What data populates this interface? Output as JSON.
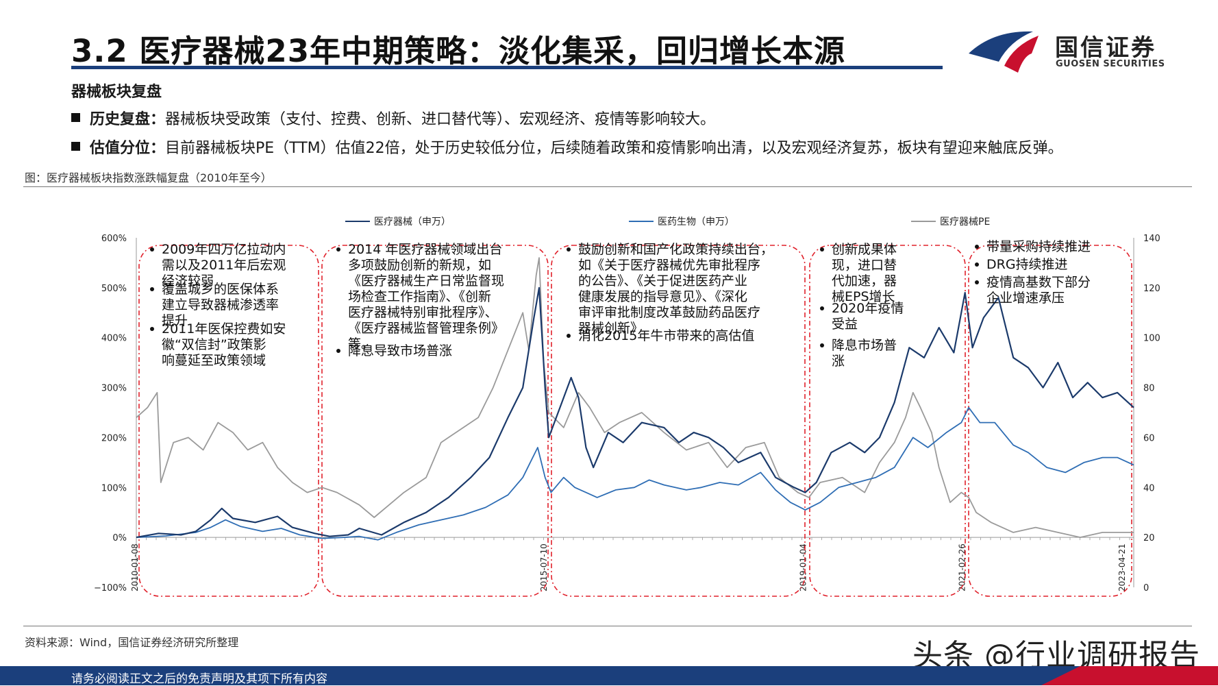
{
  "header": {
    "title": "3.2 医疗器械23年中期策略：淡化集采，回归增长本源",
    "brand_name": "国信证券",
    "brand_en": "GUOSEN SECURITIES",
    "brand_colors": {
      "navy": "#1b3f7c",
      "red": "#c8102e"
    }
  },
  "section_heading": "器械板块复盘",
  "bullets": [
    {
      "label": "历史复盘：",
      "text": "器械板块受政策（支付、控费、创新、进口替代等）、宏观经济、疫情等影响较大。"
    },
    {
      "label": "估值分位：",
      "text": "目前器械板块PE（TTM）估值22倍，处于历史较低分位，后续随着政策和疫情影响出清，以及宏观经济复苏，板块有望迎来触底反弹。"
    }
  ],
  "figure_caption": "图：医疗器械板块指数涨跌幅复盘（2010年至今）",
  "source": "资料来源：Wind，国信证券经济研究所整理",
  "watermark": "头条 @行业调研报告",
  "footer": "请务必阅读正文之后的免责声明及其项下所有内容",
  "chart_data": {
    "type": "line",
    "x_tick_labels": [
      "2010-01-08",
      "2015-07-10",
      "2019-01-04",
      "2021-02-26",
      "2023-04-21"
    ],
    "y_left": {
      "ylim": [
        -100,
        600
      ],
      "ticks": [
        "600%",
        "500%",
        "400%",
        "300%",
        "200%",
        "100%",
        "0%",
        "−100%"
      ]
    },
    "y_right": {
      "ylim": [
        0,
        140
      ],
      "ticks": [
        "140",
        "120",
        "100",
        "80",
        "60",
        "40",
        "20",
        "0"
      ]
    },
    "legend_position": "top",
    "series": [
      {
        "name": "医疗器械（申万）",
        "axis": "left",
        "color": "#1b3a6b",
        "points": [
          [
            2010.0,
            0
          ],
          [
            2010.3,
            8
          ],
          [
            2010.6,
            5
          ],
          [
            2010.8,
            12
          ],
          [
            2011.0,
            35
          ],
          [
            2011.15,
            58
          ],
          [
            2011.3,
            38
          ],
          [
            2011.6,
            30
          ],
          [
            2011.9,
            42
          ],
          [
            2012.1,
            20
          ],
          [
            2012.4,
            8
          ],
          [
            2012.6,
            2
          ],
          [
            2012.85,
            5
          ],
          [
            2013.0,
            18
          ],
          [
            2013.3,
            5
          ],
          [
            2013.6,
            30
          ],
          [
            2013.9,
            50
          ],
          [
            2014.2,
            80
          ],
          [
            2014.5,
            120
          ],
          [
            2014.75,
            160
          ],
          [
            2015.0,
            240
          ],
          [
            2015.2,
            300
          ],
          [
            2015.35,
            440
          ],
          [
            2015.42,
            500
          ],
          [
            2015.5,
            300
          ],
          [
            2015.55,
            200
          ],
          [
            2015.65,
            240
          ],
          [
            2015.85,
            320
          ],
          [
            2015.95,
            280
          ],
          [
            2016.05,
            180
          ],
          [
            2016.15,
            140
          ],
          [
            2016.35,
            210
          ],
          [
            2016.55,
            190
          ],
          [
            2016.8,
            230
          ],
          [
            2017.1,
            220
          ],
          [
            2017.3,
            190
          ],
          [
            2017.5,
            210
          ],
          [
            2017.7,
            200
          ],
          [
            2017.9,
            180
          ],
          [
            2018.1,
            150
          ],
          [
            2018.4,
            170
          ],
          [
            2018.6,
            120
          ],
          [
            2018.85,
            100
          ],
          [
            2019.0,
            90
          ],
          [
            2019.15,
            110
          ],
          [
            2019.35,
            170
          ],
          [
            2019.6,
            190
          ],
          [
            2019.8,
            170
          ],
          [
            2020.0,
            200
          ],
          [
            2020.2,
            270
          ],
          [
            2020.4,
            380
          ],
          [
            2020.6,
            360
          ],
          [
            2020.8,
            420
          ],
          [
            2021.0,
            370
          ],
          [
            2021.15,
            490
          ],
          [
            2021.25,
            380
          ],
          [
            2021.4,
            440
          ],
          [
            2021.6,
            480
          ],
          [
            2021.8,
            360
          ],
          [
            2022.0,
            340
          ],
          [
            2022.2,
            300
          ],
          [
            2022.4,
            350
          ],
          [
            2022.6,
            280
          ],
          [
            2022.8,
            310
          ],
          [
            2023.0,
            280
          ],
          [
            2023.2,
            290
          ],
          [
            2023.42,
            260
          ]
        ]
      },
      {
        "name": "医药生物（申万）",
        "axis": "left",
        "color": "#2e6db4",
        "points": [
          [
            2010.0,
            0
          ],
          [
            2010.4,
            3
          ],
          [
            2010.8,
            10
          ],
          [
            2011.0,
            20
          ],
          [
            2011.2,
            35
          ],
          [
            2011.4,
            22
          ],
          [
            2011.7,
            12
          ],
          [
            2011.95,
            18
          ],
          [
            2012.2,
            5
          ],
          [
            2012.5,
            -2
          ],
          [
            2012.8,
            0
          ],
          [
            2013.0,
            2
          ],
          [
            2013.25,
            -5
          ],
          [
            2013.5,
            10
          ],
          [
            2013.8,
            25
          ],
          [
            2014.1,
            35
          ],
          [
            2014.4,
            45
          ],
          [
            2014.7,
            60
          ],
          [
            2015.0,
            85
          ],
          [
            2015.2,
            120
          ],
          [
            2015.4,
            180
          ],
          [
            2015.5,
            120
          ],
          [
            2015.58,
            90
          ],
          [
            2015.75,
            120
          ],
          [
            2015.9,
            100
          ],
          [
            2016.05,
            90
          ],
          [
            2016.2,
            80
          ],
          [
            2016.45,
            95
          ],
          [
            2016.7,
            100
          ],
          [
            2016.9,
            115
          ],
          [
            2017.1,
            105
          ],
          [
            2017.4,
            95
          ],
          [
            2017.6,
            100
          ],
          [
            2017.85,
            110
          ],
          [
            2018.1,
            105
          ],
          [
            2018.4,
            130
          ],
          [
            2018.6,
            95
          ],
          [
            2018.8,
            70
          ],
          [
            2019.0,
            55
          ],
          [
            2019.2,
            70
          ],
          [
            2019.45,
            100
          ],
          [
            2019.7,
            110
          ],
          [
            2019.95,
            120
          ],
          [
            2020.2,
            140
          ],
          [
            2020.45,
            200
          ],
          [
            2020.65,
            180
          ],
          [
            2020.9,
            210
          ],
          [
            2021.1,
            230
          ],
          [
            2021.2,
            260
          ],
          [
            2021.35,
            230
          ],
          [
            2021.55,
            230
          ],
          [
            2021.8,
            185
          ],
          [
            2022.0,
            170
          ],
          [
            2022.25,
            140
          ],
          [
            2022.5,
            130
          ],
          [
            2022.75,
            150
          ],
          [
            2023.0,
            160
          ],
          [
            2023.2,
            160
          ],
          [
            2023.42,
            145
          ]
        ]
      },
      {
        "name": "医疗器械PE",
        "axis": "right",
        "color": "#9a9a9a",
        "points": [
          [
            2010.0,
            68
          ],
          [
            2010.15,
            72
          ],
          [
            2010.28,
            78
          ],
          [
            2010.33,
            42
          ],
          [
            2010.5,
            58
          ],
          [
            2010.7,
            60
          ],
          [
            2010.9,
            55
          ],
          [
            2011.1,
            66
          ],
          [
            2011.3,
            62
          ],
          [
            2011.5,
            55
          ],
          [
            2011.7,
            58
          ],
          [
            2011.9,
            48
          ],
          [
            2012.1,
            42
          ],
          [
            2012.3,
            38
          ],
          [
            2012.5,
            40
          ],
          [
            2012.7,
            38
          ],
          [
            2013.0,
            33
          ],
          [
            2013.2,
            28
          ],
          [
            2013.4,
            33
          ],
          [
            2013.6,
            38
          ],
          [
            2013.9,
            44
          ],
          [
            2014.1,
            58
          ],
          [
            2014.3,
            62
          ],
          [
            2014.6,
            68
          ],
          [
            2014.8,
            80
          ],
          [
            2015.0,
            95
          ],
          [
            2015.2,
            110
          ],
          [
            2015.28,
            95
          ],
          [
            2015.38,
            125
          ],
          [
            2015.42,
            132
          ],
          [
            2015.48,
            90
          ],
          [
            2015.55,
            70
          ],
          [
            2015.75,
            64
          ],
          [
            2015.95,
            78
          ],
          [
            2016.1,
            72
          ],
          [
            2016.3,
            62
          ],
          [
            2016.5,
            66
          ],
          [
            2016.8,
            70
          ],
          [
            2017.1,
            62
          ],
          [
            2017.4,
            55
          ],
          [
            2017.7,
            58
          ],
          [
            2017.95,
            48
          ],
          [
            2018.2,
            56
          ],
          [
            2018.45,
            58
          ],
          [
            2018.65,
            44
          ],
          [
            2018.9,
            38
          ],
          [
            2019.05,
            36
          ],
          [
            2019.2,
            42
          ],
          [
            2019.5,
            44
          ],
          [
            2019.8,
            38
          ],
          [
            2020.0,
            50
          ],
          [
            2020.2,
            58
          ],
          [
            2020.35,
            68
          ],
          [
            2020.45,
            78
          ],
          [
            2020.55,
            72
          ],
          [
            2020.7,
            62
          ],
          [
            2020.8,
            48
          ],
          [
            2020.95,
            34
          ],
          [
            2021.1,
            38
          ],
          [
            2021.2,
            36
          ],
          [
            2021.3,
            30
          ],
          [
            2021.5,
            26
          ],
          [
            2021.8,
            22
          ],
          [
            2022.1,
            24
          ],
          [
            2022.4,
            22
          ],
          [
            2022.7,
            20
          ],
          [
            2023.0,
            22
          ],
          [
            2023.2,
            22
          ],
          [
            2023.42,
            22
          ]
        ]
      }
    ],
    "annotations": [
      {
        "lines": [
          "2009年四万亿拉动内",
          "需以及2011年后宏观",
          "经济较弱"
        ],
        "bullet": true
      },
      {
        "lines": [
          "覆盖城乡的医保体系",
          "建立导致器械渗透率",
          "提升"
        ],
        "bullet": true
      },
      {
        "lines": [
          "2011年医保控费如安",
          "徽“双信封”政策影",
          "响蔓延至政策领域"
        ],
        "bullet": true
      },
      {
        "lines": [
          "2014 年医疗器械领域出台",
          "多项鼓励创新的新规，如",
          "《医疗器械生产日常监督现",
          "场检查工作指南》、《创新",
          "医疗器械特别审批程序》、",
          "《医疗器械监督管理条例》",
          "等。"
        ],
        "bullet": true
      },
      {
        "lines": [
          "降息导致市场普涨"
        ],
        "bullet": true
      },
      {
        "lines": [
          "鼓励创新和国产化政策持续出台，",
          "如《关于医疗器械优先审批程序",
          "的公告》、《关于促进医药产业",
          "健康发展的指导意见》、《深化",
          "审评审批制度改革鼓励药品医疗",
          "器械创新》"
        ],
        "bullet": true
      },
      {
        "lines": [
          "消化2015年牛市带来的高估值"
        ],
        "bullet": true
      },
      {
        "lines": [
          "创新成果体",
          "现，进口替",
          "代加速，器",
          "械EPS增长"
        ],
        "bullet": true
      },
      {
        "lines": [
          "2020年疫情",
          "受益"
        ],
        "bullet": true
      },
      {
        "lines": [
          "降息市场普",
          "涨"
        ],
        "bullet": true
      },
      {
        "lines": [
          "带量采购持续推进"
        ],
        "bullet": true
      },
      {
        "lines": [
          "DRG持续推进"
        ],
        "bullet": true
      },
      {
        "lines": [
          "疫情高基数下部分",
          "企业增速承压"
        ],
        "bullet": true
      }
    ]
  }
}
